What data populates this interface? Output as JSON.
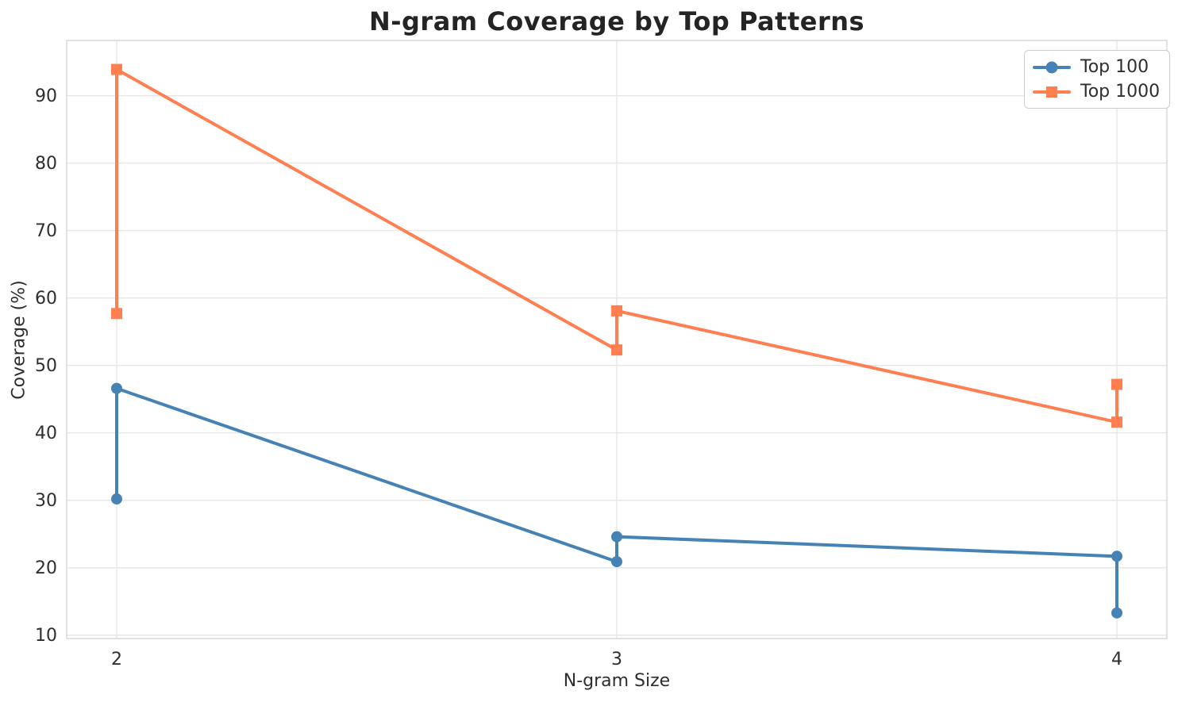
{
  "chart_data": {
    "type": "line",
    "title": "N-gram Coverage by Top Patterns",
    "xlabel": "N-gram Size",
    "ylabel": "Coverage (%)",
    "x_ticks": [
      2,
      3,
      4
    ],
    "y_ticks": [
      10,
      20,
      30,
      40,
      50,
      60,
      70,
      80,
      90
    ],
    "xlim": [
      1.9,
      4.1
    ],
    "ylim": [
      9.5,
      98.2
    ],
    "grid": true,
    "legend_position": "upper right",
    "series": [
      {
        "name": "Top 100",
        "color": "#4682B4",
        "marker": "circle",
        "points": [
          [
            2,
            30.2
          ],
          [
            2,
            46.6
          ],
          [
            3,
            20.9
          ],
          [
            3,
            24.6
          ],
          [
            4,
            21.7
          ],
          [
            4,
            13.3
          ]
        ]
      },
      {
        "name": "Top 1000",
        "color": "#FF7F50",
        "marker": "square",
        "points": [
          [
            2,
            57.7
          ],
          [
            2,
            93.9
          ],
          [
            3,
            52.3
          ],
          [
            3,
            58.1
          ],
          [
            4,
            41.6
          ],
          [
            4,
            47.2
          ]
        ]
      }
    ]
  },
  "style": {
    "background": "#ffffff",
    "grid_color": "#e7e7e7",
    "spine_color": "#d6d6d6",
    "text_color": "#2e2e2e",
    "title_color": "#242424",
    "legend_border_color": "#cdcdcd"
  }
}
